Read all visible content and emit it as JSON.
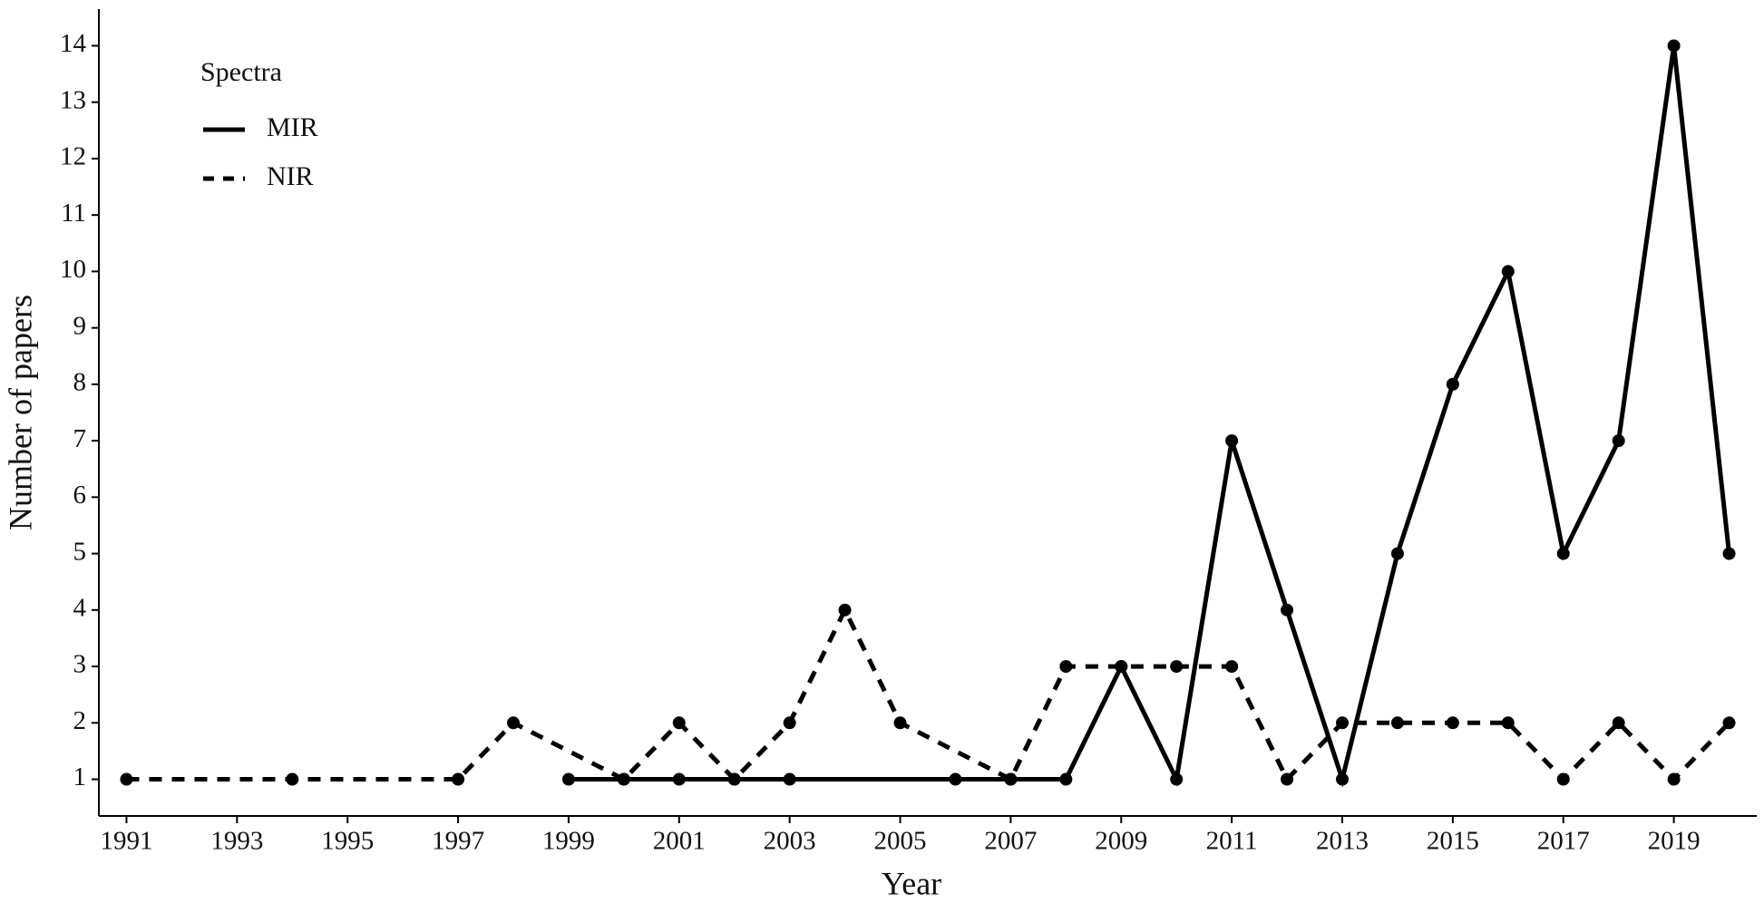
{
  "chart_data": {
    "type": "line",
    "x_label": "Year",
    "y_label": "Number of papers",
    "legend_title": "Spectra",
    "legend": "top-left",
    "series": [
      {
        "name": "MIR",
        "color": "#000000",
        "dash": "solid",
        "x": [
          1999,
          2000,
          2001,
          2002,
          2003,
          2006,
          2007,
          2008,
          2009,
          2010,
          2011,
          2012,
          2013,
          2014,
          2015,
          2016,
          2017,
          2018,
          2019,
          2020
        ],
        "values": [
          1,
          1,
          1,
          1,
          1,
          1,
          1,
          1,
          3,
          1,
          7,
          4,
          1,
          5,
          8,
          10,
          5,
          7,
          14,
          5
        ]
      },
      {
        "name": "NIR",
        "color": "#000000",
        "dash": "dashed",
        "x": [
          1991,
          1994,
          1997,
          1998,
          2000,
          2001,
          2002,
          2003,
          2004,
          2005,
          2007,
          2008,
          2009,
          2010,
          2011,
          2012,
          2013,
          2014,
          2015,
          2016,
          2017,
          2018,
          2019,
          2020
        ],
        "values": [
          1,
          1,
          1,
          2,
          1,
          2,
          1,
          2,
          4,
          2,
          1,
          3,
          3,
          3,
          3,
          1,
          2,
          2,
          2,
          2,
          1,
          2,
          1,
          2
        ]
      }
    ],
    "xlim": [
      1990.5,
      2020.5
    ],
    "xticks": [
      1991,
      1993,
      1995,
      1997,
      1999,
      2001,
      2003,
      2005,
      2007,
      2009,
      2011,
      2013,
      2015,
      2017,
      2019
    ],
    "ylim": [
      0.35,
      14.65
    ],
    "yticks": [
      1,
      2,
      3,
      4,
      5,
      6,
      7,
      8,
      9,
      10,
      11,
      12,
      13,
      14
    ],
    "grid": false
  }
}
